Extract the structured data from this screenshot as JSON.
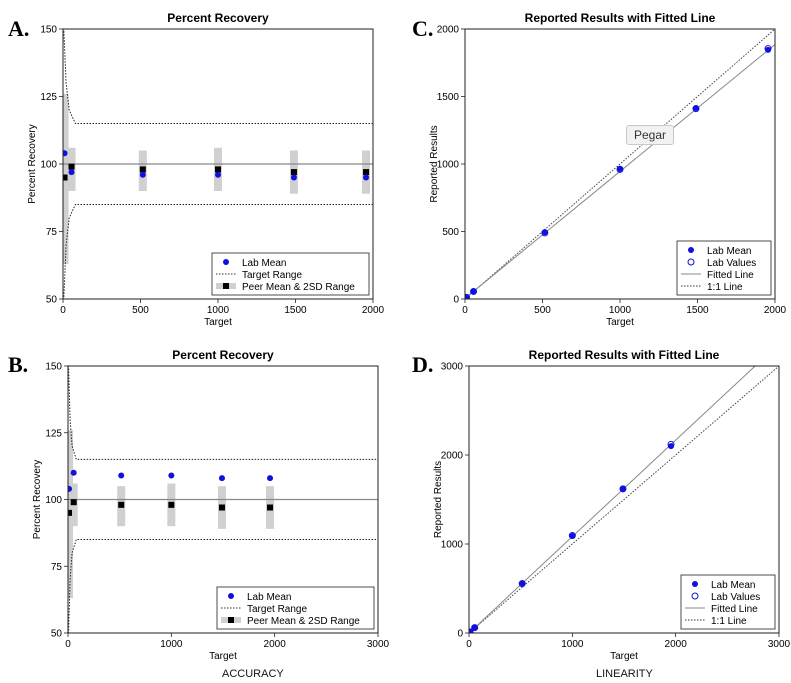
{
  "figure_labels": {
    "a": "A.",
    "b": "B.",
    "c": "C.",
    "d": "D."
  },
  "footer": {
    "accuracy": "ACCURACY",
    "linearity": "LINEARITY"
  },
  "tooltip": "Pegar",
  "colors": {
    "lab": "#1010e0",
    "peer": "#000000",
    "peer_bar": "#d0d0d0",
    "line": "#888888"
  },
  "chart_data": [
    {
      "id": "A",
      "type": "scatter",
      "title": "Percent Recovery",
      "xlabel": "Target",
      "ylabel": "Percent Recovery",
      "xlim": [
        0,
        2000
      ],
      "ylim": [
        50,
        150
      ],
      "xticks": [
        0,
        500,
        1000,
        1500,
        2000
      ],
      "yticks": [
        50,
        75,
        100,
        125,
        150
      ],
      "reference_y": 100,
      "target_range_upper": [
        [
          0,
          150
        ],
        [
          5,
          150
        ],
        [
          20,
          130
        ],
        [
          40,
          120
        ],
        [
          80,
          115
        ],
        [
          2000,
          115
        ]
      ],
      "target_range_lower": [
        [
          0,
          50
        ],
        [
          5,
          50
        ],
        [
          20,
          70
        ],
        [
          40,
          80
        ],
        [
          80,
          85
        ],
        [
          2000,
          85
        ]
      ],
      "lab_mean": {
        "x": [
          10,
          55,
          515,
          1000,
          1490,
          1955
        ],
        "y": [
          104,
          97,
          96,
          96,
          95,
          95
        ]
      },
      "peer_mean": {
        "x": [
          10,
          55,
          515,
          1000,
          1490,
          1955
        ],
        "y": [
          95,
          99,
          98,
          98,
          97,
          97
        ],
        "low": [
          63,
          90,
          90,
          90,
          89,
          89
        ],
        "high": [
          126,
          106,
          105,
          106,
          105,
          105
        ]
      },
      "legend": {
        "position": "bottom-right",
        "entries": [
          "Lab Mean",
          "Target Range",
          "Peer Mean & 2SD Range"
        ]
      }
    },
    {
      "id": "B",
      "type": "scatter",
      "title": "Percent Recovery",
      "xlabel": "Target",
      "ylabel": "Percent Recovery",
      "xlim": [
        0,
        3000
      ],
      "ylim": [
        50,
        150
      ],
      "xticks": [
        0,
        1000,
        2000,
        3000
      ],
      "yticks": [
        50,
        75,
        100,
        125,
        150
      ],
      "reference_y": 100,
      "target_range_upper": [
        [
          0,
          150
        ],
        [
          5,
          150
        ],
        [
          20,
          130
        ],
        [
          40,
          120
        ],
        [
          80,
          115
        ],
        [
          3000,
          115
        ]
      ],
      "target_range_lower": [
        [
          0,
          50
        ],
        [
          5,
          50
        ],
        [
          20,
          70
        ],
        [
          40,
          80
        ],
        [
          80,
          85
        ],
        [
          3000,
          85
        ]
      ],
      "lab_mean": {
        "x": [
          10,
          55,
          515,
          1000,
          1490,
          1955
        ],
        "y": [
          104,
          110,
          109,
          109,
          108,
          108
        ]
      },
      "peer_mean": {
        "x": [
          10,
          55,
          515,
          1000,
          1490,
          1955
        ],
        "y": [
          95,
          99,
          98,
          98,
          97,
          97
        ],
        "low": [
          63,
          90,
          90,
          90,
          89,
          89
        ],
        "high": [
          126,
          106,
          105,
          106,
          105,
          105
        ]
      },
      "legend": {
        "position": "bottom-right",
        "entries": [
          "Lab Mean",
          "Target Range",
          "Peer Mean & 2SD Range"
        ]
      }
    },
    {
      "id": "C",
      "type": "scatter",
      "title": "Reported Results with Fitted Line",
      "xlabel": "Target",
      "ylabel": "Reported Results",
      "xlim": [
        0,
        2000
      ],
      "ylim": [
        0,
        2000
      ],
      "xticks": [
        0,
        500,
        1000,
        1500,
        2000
      ],
      "yticks": [
        0,
        500,
        1000,
        1500,
        2000
      ],
      "lab_mean": {
        "x": [
          10,
          55,
          515,
          1000,
          1490,
          1955
        ],
        "y": [
          10,
          55,
          495,
          965,
          1415,
          1845
        ]
      },
      "lab_values": {
        "x": [
          10,
          55,
          515,
          1000,
          1490,
          1955
        ],
        "y": [
          12,
          56,
          490,
          960,
          1410,
          1855
        ]
      },
      "fitted_line": [
        [
          0,
          5
        ],
        [
          2000,
          1885
        ]
      ],
      "identity_line": [
        [
          0,
          0
        ],
        [
          2000,
          2000
        ]
      ],
      "legend": {
        "position": "bottom-right",
        "entries": [
          "Lab Mean",
          "Lab Values",
          "Fitted Line",
          "1:1 Line"
        ]
      }
    },
    {
      "id": "D",
      "type": "scatter",
      "title": "Reported Results with Fitted Line",
      "xlabel": "Target",
      "ylabel": "Reported Results",
      "xlim": [
        0,
        3000
      ],
      "ylim": [
        0,
        3000
      ],
      "xticks": [
        0,
        1000,
        2000,
        3000
      ],
      "yticks": [
        0,
        1000,
        2000,
        3000
      ],
      "lab_mean": {
        "x": [
          10,
          55,
          515,
          1000,
          1490,
          1955
        ],
        "y": [
          11,
          61,
          560,
          1090,
          1615,
          2100
        ]
      },
      "lab_values": {
        "x": [
          10,
          55,
          515,
          1000,
          1490,
          1955
        ],
        "y": [
          12,
          60,
          555,
          1095,
          1620,
          2120
        ]
      },
      "fitted_line": [
        [
          0,
          0
        ],
        [
          3000,
          3250
        ]
      ],
      "identity_line": [
        [
          0,
          0
        ],
        [
          3000,
          3000
        ]
      ],
      "legend": {
        "position": "bottom-right",
        "entries": [
          "Lab Mean",
          "Lab Values",
          "Fitted Line",
          "1:1 Line"
        ]
      }
    }
  ]
}
